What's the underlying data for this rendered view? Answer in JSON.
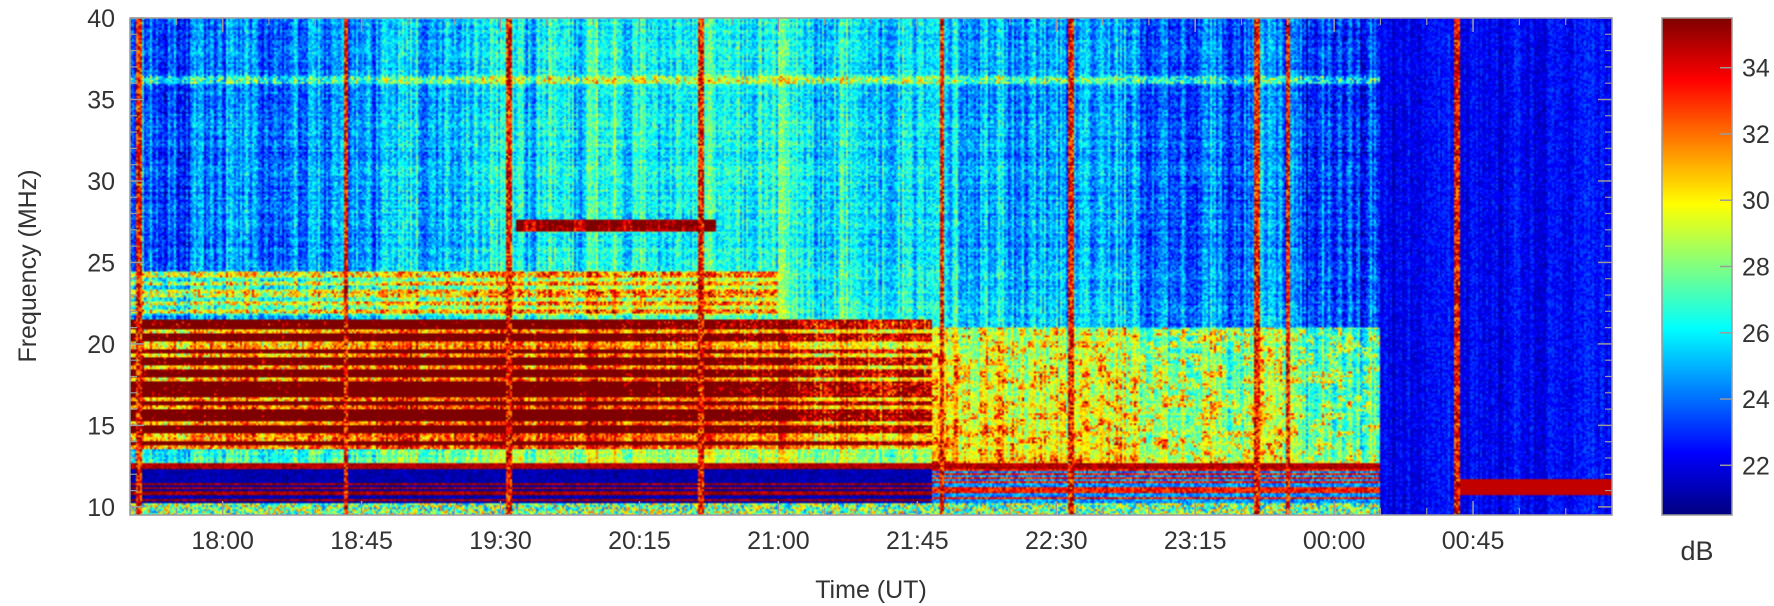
{
  "chart_data": {
    "type": "heatmap",
    "title": "",
    "xlabel": "Time (UT)",
    "ylabel": "Frequency (MHz)",
    "colorbar_label": "dB",
    "x_ticks": [
      "18:00",
      "18:45",
      "19:30",
      "20:15",
      "21:00",
      "21:45",
      "22:30",
      "23:15",
      "00:00",
      "00:45"
    ],
    "xlim": [
      "17:30",
      "01:30"
    ],
    "y_ticks": [
      10,
      15,
      20,
      25,
      30,
      35,
      40
    ],
    "ylim": [
      9.5,
      40
    ],
    "colorbar_ticks": [
      22,
      24,
      26,
      28,
      30,
      32,
      34
    ],
    "color_range": [
      20.5,
      35.5
    ],
    "colormap": [
      "#00007f",
      "#0000ff",
      "#0080ff",
      "#00ffff",
      "#80ff80",
      "#ffff00",
      "#ff8000",
      "#ff0000",
      "#7f0000"
    ],
    "grid": false,
    "legend": "colorbar-right",
    "features": {
      "saturated_band_mhz": [
        13.5,
        21.5
      ],
      "strong_band_end_time": "21:50",
      "low_band_mhz": [
        10,
        12
      ],
      "quiet_period": [
        "00:15",
        "01:30"
      ],
      "vertical_spikes": [
        "17:33",
        "18:40",
        "19:33",
        "20:35",
        "21:53",
        "22:35",
        "23:35",
        "23:45",
        "00:40"
      ],
      "line_27mhz": [
        "19:35",
        "20:40"
      ],
      "line_36mhz": [
        "17:30",
        "01:30"
      ]
    }
  }
}
